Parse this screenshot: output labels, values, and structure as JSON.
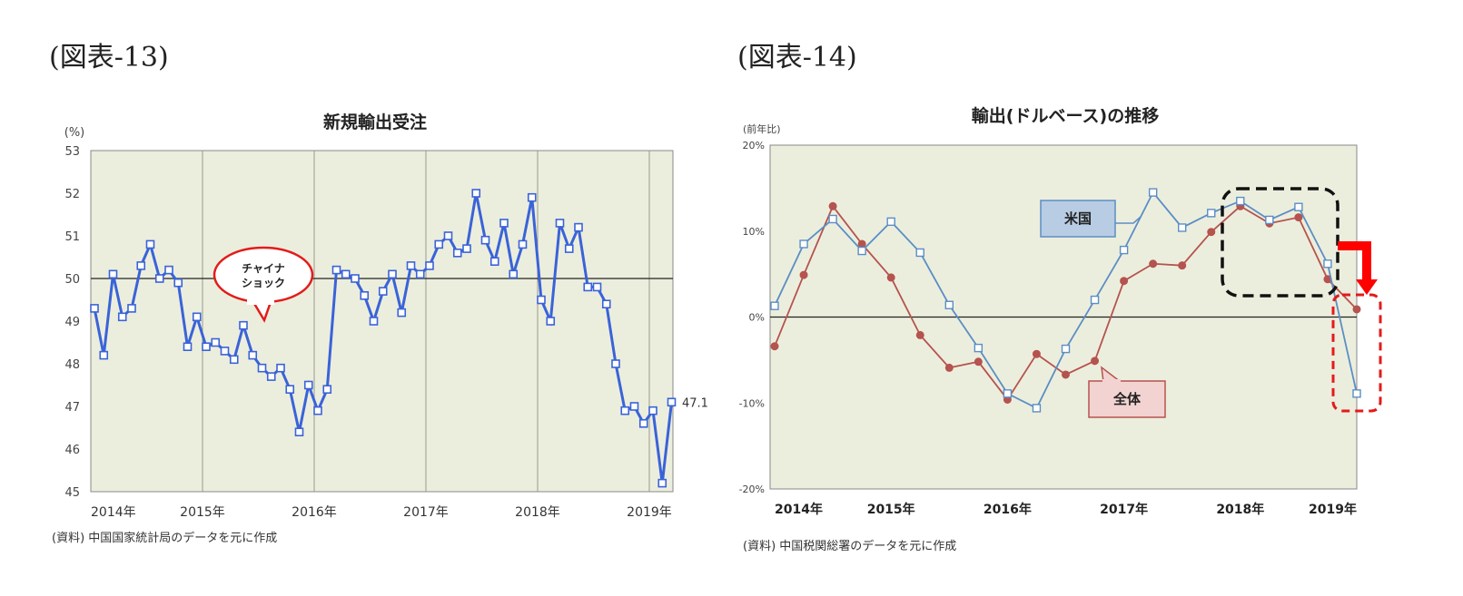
{
  "figures": {
    "fig13_label": "(図表-13)",
    "fig14_label": "(図表-14)"
  },
  "chart_data": [
    {
      "type": "line",
      "title": "新規輸出受注",
      "ylabel": "(%)",
      "ylim": [
        45,
        53
      ],
      "yticks": [
        "45",
        "46",
        "47",
        "48",
        "49",
        "50",
        "51",
        "52",
        "53"
      ],
      "xtick_labels": [
        "2014年",
        "2015年",
        "2016年",
        "2017年",
        "2018年",
        "2019年"
      ],
      "reference_line": 50,
      "grid": "vertical-at-year",
      "series": [
        {
          "color": "#3a63d8",
          "values": [
            49.3,
            48.2,
            50.1,
            49.1,
            49.3,
            50.3,
            50.8,
            50.0,
            50.2,
            49.9,
            48.4,
            49.1,
            48.4,
            48.5,
            48.3,
            48.1,
            48.9,
            48.2,
            47.9,
            47.7,
            47.9,
            47.4,
            46.4,
            47.5,
            46.9,
            47.4,
            50.2,
            50.1,
            50.0,
            49.6,
            49.0,
            49.7,
            50.1,
            49.2,
            50.3,
            50.1,
            50.3,
            50.8,
            51.0,
            50.6,
            50.7,
            52.0,
            50.9,
            50.4,
            51.3,
            50.1,
            50.8,
            51.9,
            49.5,
            49.0,
            51.3,
            50.7,
            51.2,
            49.8,
            49.8,
            49.4,
            48.0,
            46.9,
            47.0,
            46.6,
            46.9,
            45.2,
            47.1
          ]
        }
      ],
      "end_label": "47.1",
      "annotation": {
        "line1": "チャイナ",
        "line2": "ショック"
      },
      "source": "(資料) 中国国家統計局のデータを元に作成",
      "colors": {
        "plot_bg": "#eceedd",
        "line": "#3a63d8"
      }
    },
    {
      "type": "line",
      "title": "輸出(ドルベース)の推移",
      "ylabel": "(前年比)",
      "ylim": [
        -20,
        20
      ],
      "yticks": [
        "-20%",
        "-10%",
        "0%",
        "10%",
        "20%"
      ],
      "xtick_labels": [
        "2014年",
        "2015年",
        "2016年",
        "2017年",
        "2018年",
        "2019年"
      ],
      "reference_line": 0,
      "series": [
        {
          "name": "米国",
          "color": "#5b8ec5",
          "marker": "square",
          "values": [
            1.3,
            8.5,
            11.4,
            7.7,
            11.1,
            7.5,
            1.4,
            -3.6,
            -8.9,
            -10.6,
            -3.7,
            2.0,
            7.8,
            14.5,
            10.4,
            12.1,
            13.5,
            11.3,
            12.8,
            6.2,
            -8.9
          ]
        },
        {
          "name": "全体",
          "color": "#b5534f",
          "marker": "circle",
          "values": [
            -3.4,
            4.9,
            12.9,
            8.5,
            4.6,
            -2.1,
            -5.9,
            -5.2,
            -9.6,
            -4.3,
            -6.7,
            -5.1,
            4.2,
            6.2,
            6.0,
            9.9,
            12.9,
            10.9,
            11.6,
            4.4,
            0.9
          ]
        }
      ],
      "source": "(資料) 中国税関総署のデータを元に作成",
      "colors": {
        "plot_bg": "#eceedd",
        "callout_us": "#b8cce4",
        "callout_all": "#f2d3d1",
        "arrow": "#ff0000"
      }
    }
  ]
}
